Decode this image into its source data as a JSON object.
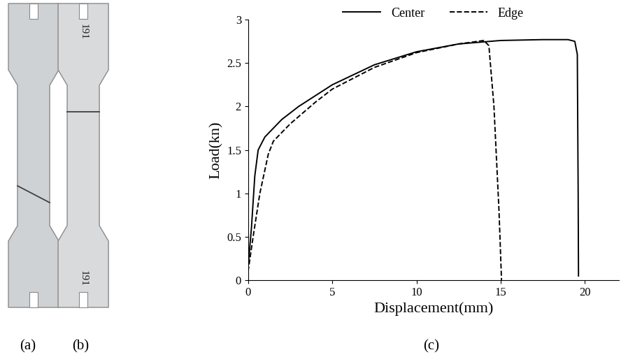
{
  "chart_data": {
    "type": "line",
    "x_label": "Displacement(mm)",
    "y_label": "Load(kn)",
    "xlim": [
      0,
      22
    ],
    "xticks": [
      0,
      5,
      10,
      15,
      20
    ],
    "ylim": [
      0,
      3
    ],
    "yticks": [
      0,
      0.5,
      1,
      1.5,
      2,
      2.5,
      3
    ],
    "legend": "upper center",
    "grid": false,
    "series": [
      {
        "name": "Center",
        "color": "#000000",
        "line_style": "solid",
        "x": [
          0,
          0.2,
          0.4,
          0.6,
          1,
          2,
          3,
          5,
          7.5,
          10,
          12.5,
          15,
          17.5,
          19,
          19.4,
          19.55,
          19.6,
          19.62
        ],
        "values": [
          0.15,
          0.6,
          1.2,
          1.5,
          1.65,
          1.85,
          2.0,
          2.25,
          2.48,
          2.63,
          2.72,
          2.76,
          2.77,
          2.77,
          2.75,
          2.6,
          1.0,
          0.05
        ]
      },
      {
        "name": "Edge",
        "color": "#000000",
        "line_style": "dashed",
        "x": [
          0,
          0.3,
          0.7,
          1.2,
          1.5,
          2.5,
          4,
          5,
          7.5,
          10,
          12.5,
          14,
          14.3,
          14.6,
          14.9,
          15.05
        ],
        "values": [
          0.1,
          0.5,
          1.0,
          1.45,
          1.6,
          1.8,
          2.05,
          2.2,
          2.45,
          2.62,
          2.72,
          2.76,
          2.7,
          2.0,
          0.8,
          0.0
        ]
      }
    ]
  },
  "panel_labels": [
    "(a)",
    "(b)",
    "(c)"
  ],
  "specimen_marks": [
    "191",
    "191"
  ]
}
